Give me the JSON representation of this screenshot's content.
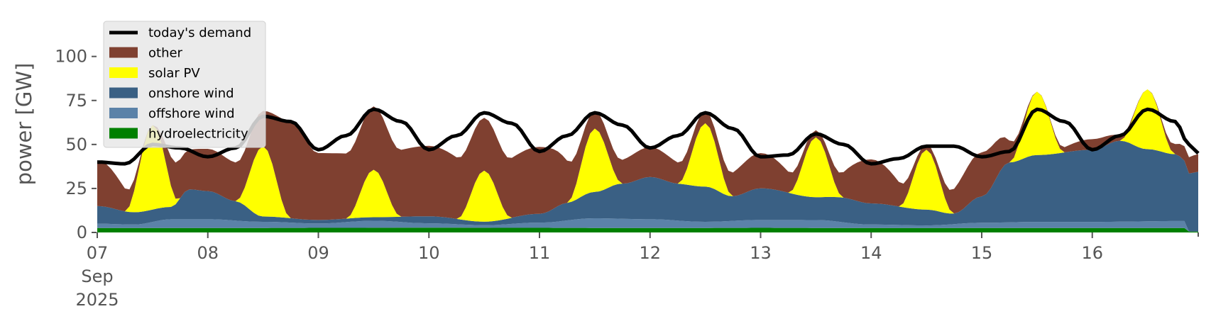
{
  "chart_data": {
    "type": "area",
    "ylabel": "power [GW]",
    "ylim": [
      0,
      120
    ],
    "yticks": [
      0,
      25,
      50,
      75,
      100
    ],
    "xlim": [
      "2025-09-07T00:00",
      "2025-09-16T23:00"
    ],
    "x_ticks": [
      {
        "date": "2025-09-07",
        "label": "07",
        "sub1": "Sep",
        "sub2": "2025"
      },
      {
        "date": "2025-09-08",
        "label": "08"
      },
      {
        "date": "2025-09-09",
        "label": "09"
      },
      {
        "date": "2025-09-10",
        "label": "10"
      },
      {
        "date": "2025-09-11",
        "label": "11"
      },
      {
        "date": "2025-09-12",
        "label": "12"
      },
      {
        "date": "2025-09-13",
        "label": "13"
      },
      {
        "date": "2025-09-14",
        "label": "14"
      },
      {
        "date": "2025-09-15",
        "label": "15"
      },
      {
        "date": "2025-09-16",
        "label": "16"
      }
    ],
    "grid": false,
    "legend_position": "top-left",
    "colors": {
      "demand": "#000000",
      "other": "#7f4030",
      "solar": "#ffff00",
      "onshore": "#3a6084",
      "offshore": "#5b82a8",
      "hydro": "#008000",
      "legend_bg": "#e8e8e8"
    },
    "legend": [
      {
        "key": "demand",
        "label": "today's demand",
        "kind": "line"
      },
      {
        "key": "other",
        "label": "other",
        "kind": "patch"
      },
      {
        "key": "solar",
        "label": "solar PV",
        "kind": "patch"
      },
      {
        "key": "onshore",
        "label": "onshore wind",
        "kind": "patch"
      },
      {
        "key": "offshore",
        "label": "offshore wind",
        "kind": "patch"
      },
      {
        "key": "hydro",
        "label": "hydroelectricity",
        "kind": "patch"
      }
    ],
    "series": [
      {
        "key": "hydro",
        "name": "hydroelectricity",
        "points": [
          [
            "2025-09-07T00:00",
            2.5
          ],
          [
            "2025-09-08T00:00",
            2.5
          ],
          [
            "2025-09-09T00:00",
            2.6
          ],
          [
            "2025-09-10T00:00",
            2.7
          ],
          [
            "2025-09-11T00:00",
            2.6
          ],
          [
            "2025-09-12T00:00",
            2.5
          ],
          [
            "2025-09-13T00:00",
            2.6
          ],
          [
            "2025-09-14T00:00",
            2.5
          ],
          [
            "2025-09-15T00:00",
            2.5
          ],
          [
            "2025-09-16T00:00",
            2.5
          ],
          [
            "2025-09-16T20:00",
            2.5
          ],
          [
            "2025-09-16T21:00",
            0.5
          ],
          [
            "2025-09-16T23:00",
            0.5
          ]
        ]
      },
      {
        "key": "offshore",
        "name": "offshore wind",
        "points": [
          [
            "2025-09-07T00:00",
            2.5
          ],
          [
            "2025-09-07T08:00",
            2.0
          ],
          [
            "2025-09-07T16:00",
            5.0
          ],
          [
            "2025-09-08T00:00",
            5.0
          ],
          [
            "2025-09-08T12:00",
            3.5
          ],
          [
            "2025-09-09T00:00",
            2.5
          ],
          [
            "2025-09-09T12:00",
            4.0
          ],
          [
            "2025-09-10T00:00",
            2.5
          ],
          [
            "2025-09-10T12:00",
            1.5
          ],
          [
            "2025-09-11T00:00",
            3.0
          ],
          [
            "2025-09-11T12:00",
            5.5
          ],
          [
            "2025-09-12T00:00",
            5.0
          ],
          [
            "2025-09-12T12:00",
            3.5
          ],
          [
            "2025-09-13T00:00",
            4.5
          ],
          [
            "2025-09-13T12:00",
            4.5
          ],
          [
            "2025-09-14T00:00",
            2.0
          ],
          [
            "2025-09-14T12:00",
            1.5
          ],
          [
            "2025-09-15T00:00",
            3.0
          ],
          [
            "2025-09-15T12:00",
            3.5
          ],
          [
            "2025-09-16T00:00",
            3.5
          ],
          [
            "2025-09-16T20:00",
            4.0
          ],
          [
            "2025-09-16T21:00",
            0.0
          ],
          [
            "2025-09-16T23:00",
            0.0
          ]
        ]
      },
      {
        "key": "onshore",
        "name": "onshore wind",
        "points": [
          [
            "2025-09-07T00:00",
            10
          ],
          [
            "2025-09-07T08:00",
            7
          ],
          [
            "2025-09-07T16:00",
            7
          ],
          [
            "2025-09-07T20:00",
            17
          ],
          [
            "2025-09-08T00:00",
            16
          ],
          [
            "2025-09-08T06:00",
            11
          ],
          [
            "2025-09-08T12:00",
            3
          ],
          [
            "2025-09-09T00:00",
            2
          ],
          [
            "2025-09-09T12:00",
            2
          ],
          [
            "2025-09-10T00:00",
            4
          ],
          [
            "2025-09-10T12:00",
            2
          ],
          [
            "2025-09-11T00:00",
            5
          ],
          [
            "2025-09-11T06:00",
            10
          ],
          [
            "2025-09-11T12:00",
            15
          ],
          [
            "2025-09-11T18:00",
            20
          ],
          [
            "2025-09-12T00:00",
            24
          ],
          [
            "2025-09-12T06:00",
            21
          ],
          [
            "2025-09-12T12:00",
            20
          ],
          [
            "2025-09-12T18:00",
            14
          ],
          [
            "2025-09-13T00:00",
            18
          ],
          [
            "2025-09-13T12:00",
            13
          ],
          [
            "2025-09-13T18:00",
            14
          ],
          [
            "2025-09-14T00:00",
            12
          ],
          [
            "2025-09-14T12:00",
            9
          ],
          [
            "2025-09-14T18:00",
            6
          ],
          [
            "2025-09-15T00:00",
            15
          ],
          [
            "2025-09-15T06:00",
            34
          ],
          [
            "2025-09-15T12:00",
            38
          ],
          [
            "2025-09-16T00:00",
            41
          ],
          [
            "2025-09-16T06:00",
            46
          ],
          [
            "2025-09-16T12:00",
            41
          ],
          [
            "2025-09-16T18:00",
            38
          ],
          [
            "2025-09-16T21:00",
            33
          ],
          [
            "2025-09-16T23:00",
            34
          ]
        ]
      },
      {
        "key": "solar",
        "name": "solar PV",
        "points": [
          [
            "2025-09-07T00:00",
            0
          ],
          [
            "2025-09-07T06:00",
            0
          ],
          [
            "2025-09-07T12:00",
            48
          ],
          [
            "2025-09-07T18:00",
            0
          ],
          [
            "2025-09-08T06:00",
            0
          ],
          [
            "2025-09-08T12:00",
            40
          ],
          [
            "2025-09-08T18:00",
            0
          ],
          [
            "2025-09-09T06:00",
            0
          ],
          [
            "2025-09-09T12:00",
            27
          ],
          [
            "2025-09-09T18:00",
            0
          ],
          [
            "2025-09-10T06:00",
            0
          ],
          [
            "2025-09-10T12:00",
            29
          ],
          [
            "2025-09-10T18:00",
            0
          ],
          [
            "2025-09-11T06:00",
            0
          ],
          [
            "2025-09-11T12:00",
            36
          ],
          [
            "2025-09-11T18:00",
            0
          ],
          [
            "2025-09-12T06:00",
            0
          ],
          [
            "2025-09-12T12:00",
            36
          ],
          [
            "2025-09-12T18:00",
            0
          ],
          [
            "2025-09-13T06:00",
            0
          ],
          [
            "2025-09-13T12:00",
            34
          ],
          [
            "2025-09-13T18:00",
            0
          ],
          [
            "2025-09-14T06:00",
            0
          ],
          [
            "2025-09-14T12:00",
            34
          ],
          [
            "2025-09-14T18:00",
            0
          ],
          [
            "2025-09-15T06:00",
            0
          ],
          [
            "2025-09-15T12:00",
            36
          ],
          [
            "2025-09-15T18:00",
            0
          ],
          [
            "2025-09-16T06:00",
            0
          ],
          [
            "2025-09-16T12:00",
            34
          ],
          [
            "2025-09-16T18:00",
            0
          ],
          [
            "2025-09-16T23:00",
            0
          ]
        ]
      },
      {
        "key": "other",
        "name": "other",
        "points": [
          [
            "2025-09-07T00:00",
            26
          ],
          [
            "2025-09-07T12:00",
            0
          ],
          [
            "2025-09-07T18:00",
            22
          ],
          [
            "2025-09-08T00:00",
            24
          ],
          [
            "2025-09-08T12:00",
            20
          ],
          [
            "2025-09-08T18:00",
            55
          ],
          [
            "2025-09-09T00:00",
            38
          ],
          [
            "2025-09-09T12:00",
            36
          ],
          [
            "2025-09-10T00:00",
            40
          ],
          [
            "2025-09-10T12:00",
            30
          ],
          [
            "2025-09-11T00:00",
            38
          ],
          [
            "2025-09-11T12:00",
            10
          ],
          [
            "2025-09-12T00:00",
            17
          ],
          [
            "2025-09-12T12:00",
            7
          ],
          [
            "2025-09-13T00:00",
            20
          ],
          [
            "2025-09-13T12:00",
            4
          ],
          [
            "2025-09-14T00:00",
            25
          ],
          [
            "2025-09-14T12:00",
            3
          ],
          [
            "2025-09-15T00:00",
            25
          ],
          [
            "2025-09-15T12:00",
            0
          ],
          [
            "2025-09-16T00:00",
            6
          ],
          [
            "2025-09-16T12:00",
            0
          ],
          [
            "2025-09-16T23:00",
            10
          ]
        ]
      },
      {
        "key": "demand",
        "name": "today's demand",
        "points": [
          [
            "2025-09-07T00:00",
            40
          ],
          [
            "2025-09-07T06:00",
            39
          ],
          [
            "2025-09-07T12:00",
            50
          ],
          [
            "2025-09-07T18:00",
            48
          ],
          [
            "2025-09-08T00:00",
            43
          ],
          [
            "2025-09-08T06:00",
            48
          ],
          [
            "2025-09-08T12:00",
            66
          ],
          [
            "2025-09-08T18:00",
            63
          ],
          [
            "2025-09-09T00:00",
            47
          ],
          [
            "2025-09-09T06:00",
            55
          ],
          [
            "2025-09-09T12:00",
            70
          ],
          [
            "2025-09-09T18:00",
            63
          ],
          [
            "2025-09-10T00:00",
            47
          ],
          [
            "2025-09-10T06:00",
            55
          ],
          [
            "2025-09-10T12:00",
            68
          ],
          [
            "2025-09-10T18:00",
            62
          ],
          [
            "2025-09-11T00:00",
            46
          ],
          [
            "2025-09-11T06:00",
            55
          ],
          [
            "2025-09-11T12:00",
            68
          ],
          [
            "2025-09-11T18:00",
            61
          ],
          [
            "2025-09-12T00:00",
            48
          ],
          [
            "2025-09-12T06:00",
            55
          ],
          [
            "2025-09-12T12:00",
            68
          ],
          [
            "2025-09-12T18:00",
            59
          ],
          [
            "2025-09-13T00:00",
            43
          ],
          [
            "2025-09-13T06:00",
            44
          ],
          [
            "2025-09-13T12:00",
            56
          ],
          [
            "2025-09-13T18:00",
            50
          ],
          [
            "2025-09-14T00:00",
            39
          ],
          [
            "2025-09-14T06:00",
            42
          ],
          [
            "2025-09-14T12:00",
            49
          ],
          [
            "2025-09-14T18:00",
            49
          ],
          [
            "2025-09-15T00:00",
            43
          ],
          [
            "2025-09-15T06:00",
            46
          ],
          [
            "2025-09-15T12:00",
            70
          ],
          [
            "2025-09-15T18:00",
            63
          ],
          [
            "2025-09-16T00:00",
            47
          ],
          [
            "2025-09-16T06:00",
            55
          ],
          [
            "2025-09-16T12:00",
            70
          ],
          [
            "2025-09-16T18:00",
            63
          ],
          [
            "2025-09-16T21:00",
            50
          ],
          [
            "2025-09-16T23:00",
            45
          ]
        ]
      }
    ]
  }
}
